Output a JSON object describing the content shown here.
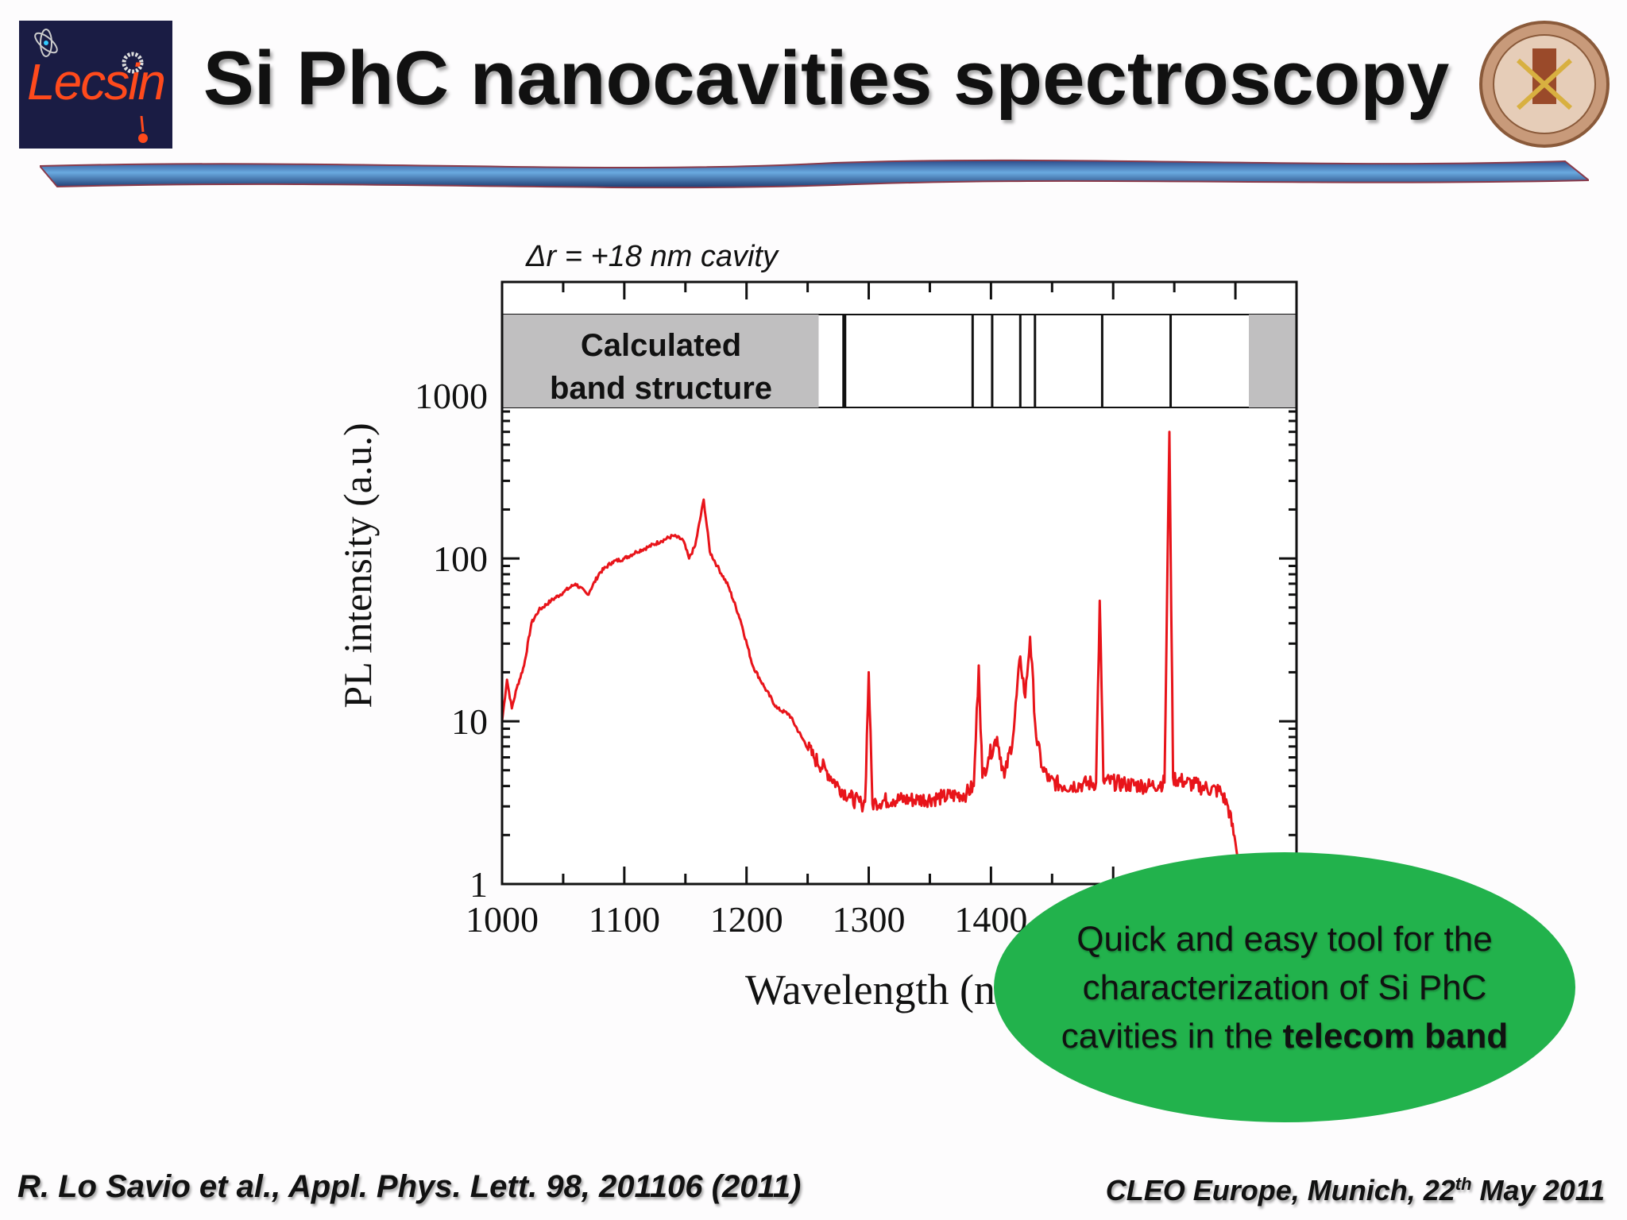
{
  "header": {
    "title": "Si PhC nanocavities spectroscopy",
    "logo_text": "Lecsin",
    "seal": "university-seal"
  },
  "figure": {
    "subtitle": "Δr = +18 nm cavity",
    "band_panel_label_line1": "Calculated",
    "band_panel_label_line2": "band structure"
  },
  "callout": {
    "line1": "Quick and easy tool for the",
    "line2": "characterization of Si PhC",
    "line3_prefix": "cavities in the ",
    "line3_bold": "telecom band",
    "color": "#22b24c"
  },
  "footer": {
    "reference": "R. Lo Savio et al., Appl. Phys. Lett. 98, 201106 (2011)",
    "event_prefix": "CLEO Europe, Munich, 22",
    "event_sup": "th",
    "event_suffix": " May 2011"
  },
  "chart_data": {
    "type": "line",
    "xlabel": "Wavelength (nm)",
    "ylabel": "PL intensity (a.u.)",
    "xlim": [
      1000,
      1650
    ],
    "ylim": [
      1,
      5000
    ],
    "yscale": "log",
    "xticks": [
      1000,
      1100,
      1200,
      1300,
      1400
    ],
    "xtick_labels": [
      "1000",
      "1100",
      "1200",
      "1300",
      "1400"
    ],
    "yticks": [
      1,
      10,
      100,
      1000
    ],
    "ytick_labels": [
      "1",
      "10",
      "100",
      "1000"
    ],
    "grid": false,
    "series": [
      {
        "color": "#e8141a",
        "x": [
          1000,
          1004,
          1008,
          1012,
          1018,
          1024,
          1030,
          1040,
          1050,
          1060,
          1070,
          1080,
          1090,
          1100,
          1110,
          1120,
          1130,
          1140,
          1148,
          1153,
          1158,
          1165,
          1170,
          1176,
          1185,
          1195,
          1205,
          1215,
          1225,
          1235,
          1245,
          1255,
          1265,
          1275,
          1285,
          1294,
          1297,
          1300,
          1303,
          1306,
          1320,
          1340,
          1360,
          1380,
          1386,
          1390,
          1393,
          1398,
          1405,
          1411,
          1418,
          1424,
          1428,
          1432,
          1437,
          1442,
          1448,
          1460,
          1475,
          1486,
          1489,
          1492,
          1510,
          1530,
          1542,
          1546,
          1549,
          1560,
          1575,
          1588,
          1594,
          1600,
          1605
        ],
        "y": [
          10,
          18,
          12,
          16,
          22,
          40,
          48,
          55,
          62,
          70,
          60,
          82,
          95,
          100,
          110,
          118,
          128,
          138,
          130,
          100,
          120,
          230,
          110,
          90,
          68,
          42,
          22,
          16,
          12,
          11,
          8,
          6,
          5,
          4,
          3.4,
          3.1,
          3.2,
          20,
          3.1,
          3.2,
          3.3,
          3.3,
          3.4,
          3.6,
          4,
          22,
          4.5,
          6,
          8,
          4.5,
          8,
          25,
          14,
          33,
          8,
          5.2,
          4.3,
          4,
          4.1,
          4.2,
          55,
          4.3,
          4.1,
          4.0,
          4.2,
          600,
          4.5,
          4.2,
          3.9,
          3.7,
          3.0,
          1.8,
          1.0
        ]
      }
    ],
    "band_panel": {
      "mode_lines_nm": [
        1280,
        1385,
        1401,
        1424,
        1436,
        1491,
        1547
      ],
      "gray_regions_nm": [
        [
          1000,
          1259
        ],
        [
          1611,
          1650
        ]
      ]
    }
  }
}
